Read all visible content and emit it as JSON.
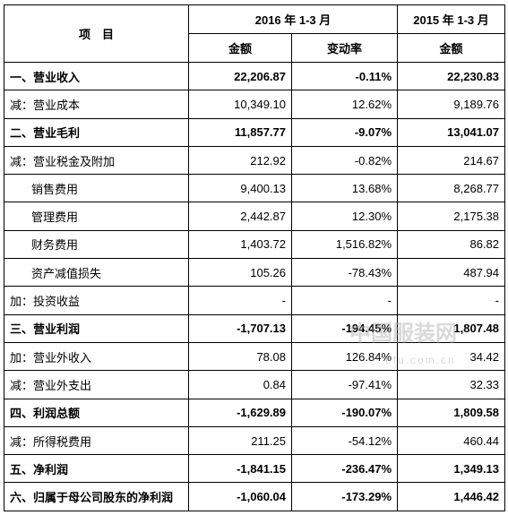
{
  "table": {
    "header": {
      "item": "项　目",
      "period_2016": "2016 年 1-3 月",
      "period_2015": "2015 年 1-3 月",
      "amount": "金额",
      "change": "变动率",
      "amount_2015": "金额"
    },
    "rows": [
      {
        "cells": [
          "一、营业收入",
          "22,206.87",
          "-0.11%",
          "22,230.83"
        ],
        "bold": true,
        "indent": false
      },
      {
        "cells": [
          "减：营业成本",
          "10,349.10",
          "12.62%",
          "9,189.76"
        ],
        "bold": false,
        "indent": false
      },
      {
        "cells": [
          "二、营业毛利",
          "11,857.77",
          "-9.07%",
          "13,041.07"
        ],
        "bold": true,
        "indent": false
      },
      {
        "cells": [
          "减：营业税金及附加",
          "212.92",
          "-0.82%",
          "214.67"
        ],
        "bold": false,
        "indent": false
      },
      {
        "cells": [
          "销售费用",
          "9,400.13",
          "13.68%",
          "8,268.77"
        ],
        "bold": false,
        "indent": true
      },
      {
        "cells": [
          "管理费用",
          "2,442.87",
          "12.30%",
          "2,175.38"
        ],
        "bold": false,
        "indent": true
      },
      {
        "cells": [
          "财务费用",
          "1,403.72",
          "1,516.82%",
          "86.82"
        ],
        "bold": false,
        "indent": true
      },
      {
        "cells": [
          "资产减值损失",
          "105.26",
          "-78.43%",
          "487.94"
        ],
        "bold": false,
        "indent": true
      },
      {
        "cells": [
          "加：投资收益",
          "-",
          "-",
          "-"
        ],
        "bold": false,
        "indent": false
      },
      {
        "cells": [
          "三、营业利润",
          "-1,707.13",
          "-194.45%",
          "1,807.48"
        ],
        "bold": true,
        "indent": false
      },
      {
        "cells": [
          "加：营业外收入",
          "78.08",
          "126.84%",
          "34.42"
        ],
        "bold": false,
        "indent": false
      },
      {
        "cells": [
          "减：营业外支出",
          "0.84",
          "-97.41%",
          "32.33"
        ],
        "bold": false,
        "indent": false
      },
      {
        "cells": [
          "四、利润总额",
          "-1,629.89",
          "-190.07%",
          "1,809.58"
        ],
        "bold": true,
        "indent": false
      },
      {
        "cells": [
          "减：所得税费用",
          "211.25",
          "-54.12%",
          "460.44"
        ],
        "bold": false,
        "indent": false
      },
      {
        "cells": [
          "五、净利润",
          "-1,841.15",
          "-236.47%",
          "1,349.13"
        ],
        "bold": true,
        "indent": false
      },
      {
        "cells": [
          "六、归属于母公司股东的净利润",
          "-1,060.04",
          "-173.29%",
          "1,446.42"
        ],
        "bold": true,
        "indent": false
      }
    ]
  },
  "watermark": {
    "name": "中国服装网",
    "url": "efu.com.cn"
  }
}
